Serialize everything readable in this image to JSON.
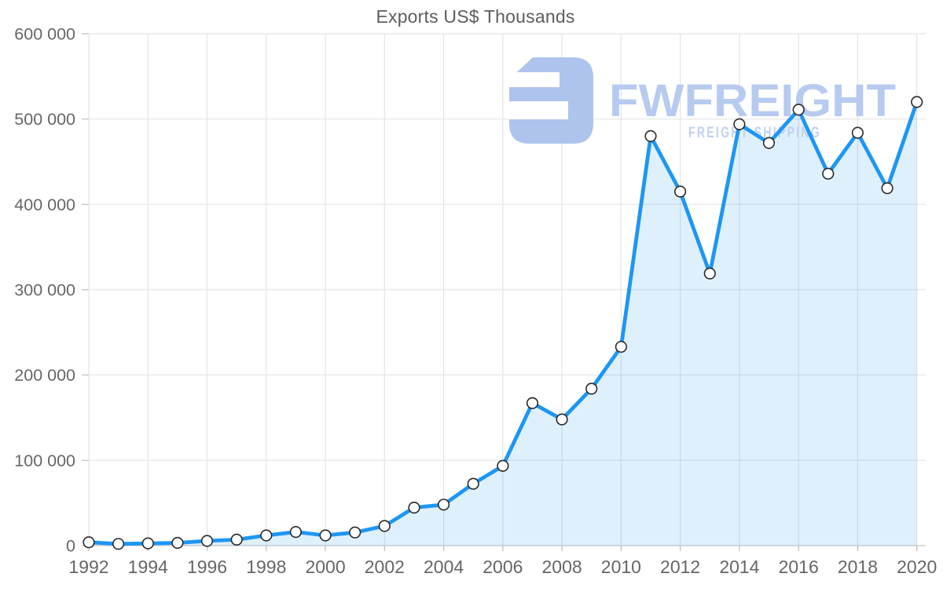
{
  "page": {
    "title": "Exports US$ Thousands"
  },
  "watermark": {
    "brand": "FWFREIGHT",
    "tagline": "FREIGHT SHIPPING",
    "logo": "fwfreight-logo"
  },
  "colors": {
    "line": "#1e96f4",
    "area": "#1e96f4",
    "area_opacity": "0.14",
    "marker_fill": "#ffffff",
    "marker_stroke": "#2a2a2a",
    "grid": "#e4e4e4",
    "axis": "#c6c6c6",
    "tick": "#bdbdbd",
    "label": "#666666",
    "title": "#5d5d5d",
    "watermark_logo": "#aec4ed",
    "watermark_brand": "#b7cbf0",
    "watermark_tagline": "#c0d1ef"
  },
  "chart_data": {
    "type": "line",
    "title": "Exports US$ Thousands",
    "series_name": "Exports",
    "unit": "US$ Thousands",
    "x": [
      1992,
      1993,
      1994,
      1995,
      1996,
      1997,
      1998,
      1999,
      2000,
      2001,
      2002,
      2003,
      2004,
      2005,
      2006,
      2007,
      2008,
      2009,
      2010,
      2011,
      2012,
      2013,
      2014,
      2015,
      2016,
      2017,
      2018,
      2019,
      2020
    ],
    "values": [
      4000,
      2000,
      2700,
      3200,
      5500,
      7000,
      12000,
      16000,
      12000,
      15500,
      23000,
      44500,
      48000,
      72500,
      93500,
      167000,
      148000,
      184000,
      233000,
      480000,
      415000,
      319000,
      494000,
      472000,
      511000,
      436000,
      484000,
      419000,
      520000
    ],
    "xlim": [
      1992,
      2020
    ],
    "ylim": [
      0,
      600000
    ],
    "y_ticks": [
      0,
      100000,
      200000,
      300000,
      400000,
      500000,
      600000
    ],
    "y_tick_labels": [
      "0",
      "100 000",
      "200 000",
      "300 000",
      "400 000",
      "500 000",
      "600 000"
    ],
    "x_ticks": [
      1992,
      1994,
      1996,
      1998,
      2000,
      2002,
      2004,
      2006,
      2008,
      2010,
      2012,
      2014,
      2016,
      2018,
      2020
    ],
    "x_tick_labels": [
      "1992",
      "1994",
      "1996",
      "1998",
      "2000",
      "2002",
      "2004",
      "2006",
      "2008",
      "2010",
      "2012",
      "2014",
      "2016",
      "2018",
      "2020"
    ],
    "grid": true,
    "legend": false,
    "marker": "circle-white"
  }
}
